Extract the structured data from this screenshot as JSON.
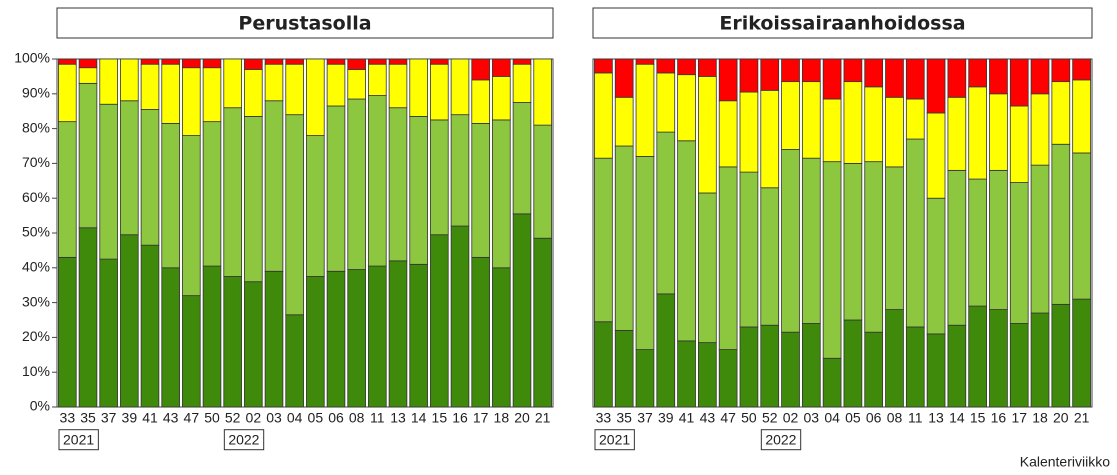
{
  "chart_data": [
    {
      "type": "bar",
      "stacked": true,
      "title": "Perustasolla",
      "categories": [
        "33",
        "35",
        "37",
        "39",
        "41",
        "43",
        "47",
        "50",
        "52",
        "02",
        "03",
        "04",
        "05",
        "06",
        "08",
        "11",
        "13",
        "14",
        "15",
        "16",
        "17",
        "18",
        "20",
        "21"
      ],
      "years": [
        "2021",
        null,
        null,
        null,
        null,
        null,
        null,
        null,
        "2022",
        null,
        null,
        null,
        null,
        null,
        null,
        null,
        null,
        null,
        null,
        null,
        null,
        null,
        null,
        null
      ],
      "series": [
        {
          "color": "#3f8a0a",
          "values": [
            43,
            51.5,
            42.5,
            49.5,
            46.5,
            40,
            32,
            40.5,
            37.5,
            36,
            39,
            26.5,
            37.5,
            39,
            39.5,
            40.5,
            42,
            41,
            49.5,
            52,
            43,
            40,
            55.5,
            48.5
          ]
        },
        {
          "color": "#8dc63f",
          "values": [
            39,
            41.5,
            44.5,
            38.5,
            39,
            41.5,
            46,
            41.5,
            48.5,
            47.5,
            49,
            57.5,
            40.5,
            47.5,
            49,
            49,
            44,
            42.5,
            33,
            32,
            38.5,
            42.5,
            32,
            32.5
          ]
        },
        {
          "color": "#ffff00",
          "values": [
            16.5,
            4.5,
            13,
            12,
            13,
            17,
            19.5,
            15.5,
            14,
            13.5,
            10.5,
            14.5,
            22,
            12,
            8.5,
            9,
            12.5,
            16.5,
            16,
            16,
            12.5,
            12.5,
            11,
            19
          ]
        },
        {
          "color": "#ff0000",
          "values": [
            1.5,
            2.5,
            0,
            0,
            1.5,
            1.5,
            2.5,
            2.5,
            0,
            3,
            1.5,
            1.5,
            0,
            1.5,
            3,
            1.5,
            1.5,
            0,
            1.5,
            0,
            6,
            5,
            1.5,
            0
          ]
        }
      ],
      "ylim": [
        0,
        100
      ],
      "yticks": [
        {
          "value": 0,
          "label": "0%"
        },
        {
          "value": 10,
          "label": "10%"
        },
        {
          "value": 20,
          "label": "20%"
        },
        {
          "value": 30,
          "label": "30%"
        },
        {
          "value": 40,
          "label": "40%"
        },
        {
          "value": 50,
          "label": "50%"
        },
        {
          "value": 60,
          "label": "60%"
        },
        {
          "value": 70,
          "label": "70%"
        },
        {
          "value": 80,
          "label": "80%"
        },
        {
          "value": 90,
          "label": "90%"
        },
        {
          "value": 100,
          "label": "100%"
        }
      ]
    },
    {
      "type": "bar",
      "stacked": true,
      "title": "Erikoissairaanhoidossa",
      "categories": [
        "33",
        "35",
        "37",
        "39",
        "41",
        "43",
        "47",
        "50",
        "52",
        "02",
        "03",
        "04",
        "05",
        "06",
        "08",
        "11",
        "13",
        "14",
        "15",
        "16",
        "17",
        "18",
        "20",
        "21"
      ],
      "years": [
        "2021",
        null,
        null,
        null,
        null,
        null,
        null,
        null,
        "2022",
        null,
        null,
        null,
        null,
        null,
        null,
        null,
        null,
        null,
        null,
        null,
        null,
        null,
        null,
        null
      ],
      "series": [
        {
          "color": "#3f8a0a",
          "values": [
            24.5,
            22,
            16.5,
            32.5,
            19,
            18.5,
            16.5,
            23,
            23.5,
            21.5,
            24,
            14,
            25,
            21.5,
            28,
            23,
            21,
            23.5,
            29,
            28,
            24,
            27,
            29.5,
            31
          ]
        },
        {
          "color": "#8dc63f",
          "values": [
            47,
            53,
            55.5,
            46.5,
            57.5,
            43,
            52.5,
            44.5,
            39.5,
            52.5,
            47.5,
            56.5,
            45,
            49,
            41,
            54,
            39,
            44.5,
            36.5,
            40,
            40.5,
            42.5,
            46,
            42
          ]
        },
        {
          "color": "#ffff00",
          "values": [
            24.5,
            14,
            26.5,
            17,
            19,
            33.5,
            19,
            23,
            28,
            19.5,
            22,
            18,
            23.5,
            21.5,
            20,
            11.5,
            24.5,
            21,
            26.5,
            22,
            22,
            20.5,
            18,
            21
          ]
        },
        {
          "color": "#ff0000",
          "values": [
            4,
            11,
            1.5,
            4,
            4.5,
            5,
            12,
            9.5,
            9,
            6.5,
            6.5,
            11.5,
            6.5,
            8,
            11,
            11.5,
            15.5,
            11,
            8,
            10,
            13.5,
            10,
            6.5,
            6
          ]
        }
      ],
      "ylim": [
        0,
        100
      ]
    }
  ],
  "x_label": "Kalenteriviikko"
}
